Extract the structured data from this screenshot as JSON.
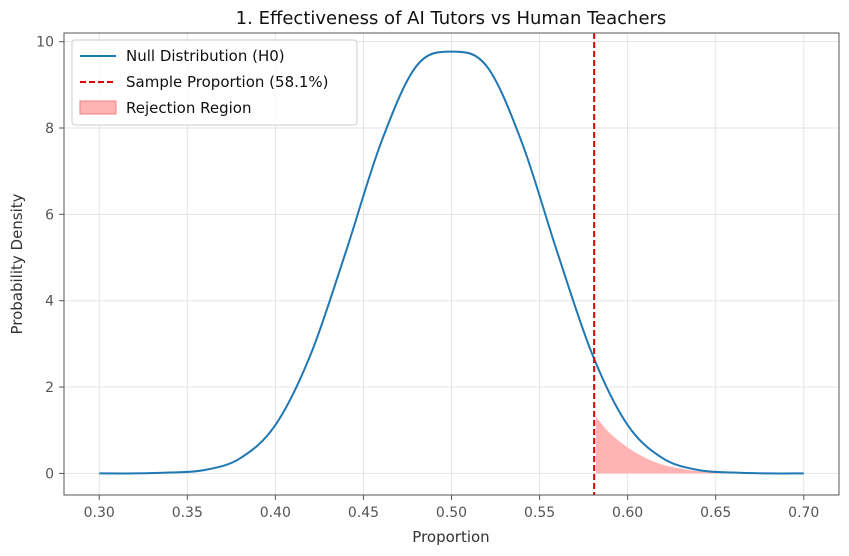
{
  "chart_data": {
    "type": "line",
    "title": "1. Effectiveness of AI Tutors vs Human Teachers",
    "xlabel": "Proportion",
    "ylabel": "Probability Density",
    "xlim": [
      0.28,
      0.72
    ],
    "ylim": [
      -0.5,
      10.2
    ],
    "x_ticks": [
      0.3,
      0.35,
      0.4,
      0.45,
      0.5,
      0.55,
      0.6,
      0.65,
      0.7
    ],
    "x_tick_labels": [
      "0.30",
      "0.35",
      "0.40",
      "0.45",
      "0.50",
      "0.55",
      "0.60",
      "0.65",
      "0.70"
    ],
    "y_ticks": [
      0,
      2,
      4,
      6,
      8,
      10
    ],
    "y_tick_labels": [
      "0",
      "2",
      "4",
      "6",
      "8",
      "10"
    ],
    "grid": true,
    "legend_position": "top-left",
    "series": [
      {
        "name": "Null Distribution (H0)",
        "kind": "line",
        "color": "#1f77b4",
        "x": [
          0.3,
          0.32,
          0.34,
          0.36,
          0.38,
          0.4,
          0.42,
          0.44,
          0.46,
          0.48,
          0.5,
          0.52,
          0.54,
          0.56,
          0.58,
          0.6,
          0.62,
          0.64,
          0.66,
          0.68,
          0.7
        ],
        "y": [
          0.0,
          0.0,
          0.02,
          0.08,
          0.35,
          1.12,
          2.75,
          5.13,
          7.66,
          9.43,
          9.77,
          9.43,
          7.66,
          5.13,
          2.75,
          1.12,
          0.35,
          0.08,
          0.02,
          0.0,
          0.0
        ]
      },
      {
        "name": "Sample Proportion (58.1%)",
        "kind": "vline",
        "color": "#dd0000",
        "x_value": 0.581
      },
      {
        "name": "Rejection Region",
        "kind": "area",
        "color": "#ffb3b3",
        "x": [
          0.582,
          0.59,
          0.6,
          0.61,
          0.62,
          0.63,
          0.64,
          0.65,
          0.66
        ],
        "y": [
          1.31,
          0.93,
          0.6,
          0.36,
          0.2,
          0.11,
          0.05,
          0.02,
          0.01
        ]
      }
    ]
  }
}
